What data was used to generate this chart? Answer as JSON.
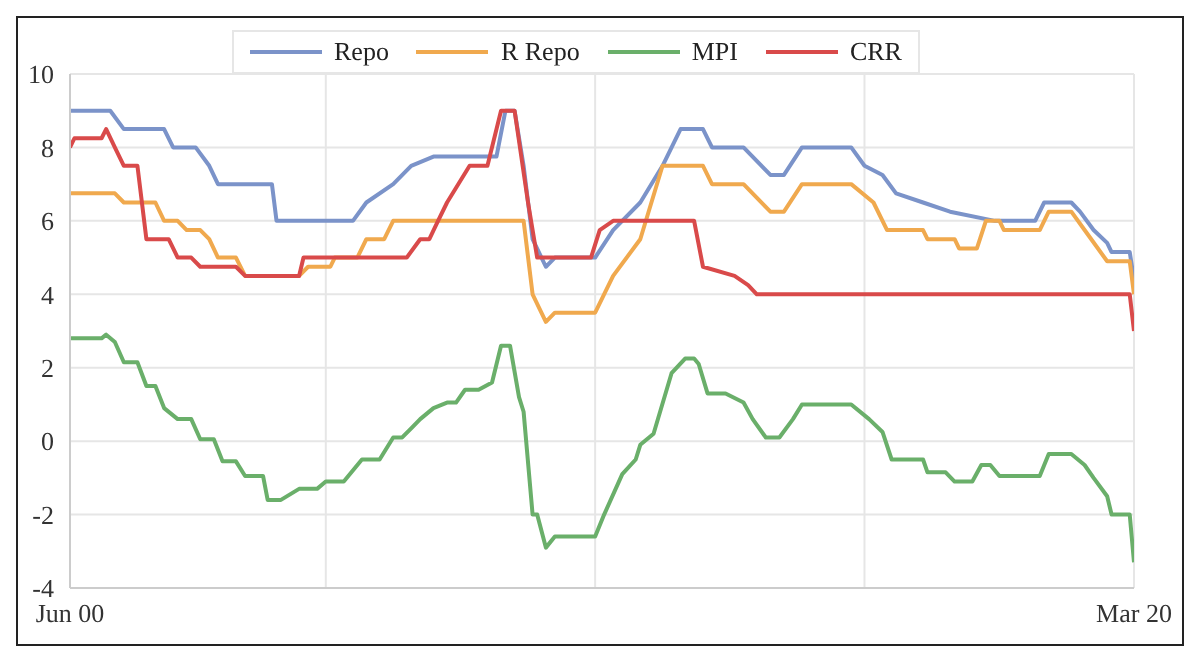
{
  "chart_data": {
    "type": "line",
    "legend": "top",
    "grid": true,
    "marker": "none",
    "line_style": "solid",
    "xlim": [
      "2000-06",
      "2020-03"
    ],
    "xticks": [
      {
        "value": "2000-06",
        "label": "Jun 00"
      },
      {
        "value": "2005-03",
        "label": null
      },
      {
        "value": "2010-03",
        "label": null
      },
      {
        "value": "2015-03",
        "label": null
      },
      {
        "value": "2020-03",
        "label": "Mar 20"
      }
    ],
    "ylim": [
      -4,
      10
    ],
    "yticks": [
      -4,
      -2,
      0,
      2,
      4,
      6,
      8,
      10
    ],
    "series": [
      {
        "name": "Repo",
        "color": "#7b93c9",
        "x": [
          "2000-06",
          "2001-03",
          "2001-06",
          "2002-03",
          "2002-05",
          "2002-10",
          "2003-01",
          "2003-03",
          "2004-03",
          "2004-04",
          "2005-09",
          "2005-12",
          "2006-06",
          "2006-10",
          "2007-03",
          "2008-05",
          "2008-07",
          "2008-09",
          "2008-11",
          "2009-01",
          "2009-04",
          "2009-06",
          "2010-03",
          "2010-07",
          "2011-01",
          "2011-06",
          "2011-10",
          "2012-03",
          "2012-05",
          "2012-12",
          "2013-06",
          "2013-09",
          "2014-01",
          "2014-12",
          "2015-03",
          "2015-07",
          "2015-10",
          "2016-04",
          "2016-10",
          "2017-08",
          "2018-05",
          "2018-07",
          "2019-01",
          "2019-03",
          "2019-06",
          "2019-09",
          "2019-10",
          "2020-02",
          "2020-03"
        ],
        "values": [
          9,
          9,
          8.5,
          8.5,
          8,
          8,
          7.5,
          7,
          7,
          6,
          6,
          6.5,
          7,
          7.5,
          7.75,
          7.75,
          9,
          9,
          7.5,
          5.5,
          4.75,
          5,
          5,
          5.75,
          6.5,
          7.5,
          8.5,
          8.5,
          8,
          8,
          7.25,
          7.25,
          8,
          8,
          7.5,
          7.25,
          6.75,
          6.5,
          6.25,
          6,
          6,
          6.5,
          6.5,
          6.25,
          5.75,
          5.4,
          5.15,
          5.15,
          4.4
        ]
      },
      {
        "name": "R Repo",
        "color": "#f0a94e",
        "x": [
          "2000-06",
          "2001-04",
          "2001-06",
          "2002-01",
          "2002-03",
          "2002-06",
          "2002-08",
          "2002-11",
          "2003-01",
          "2003-03",
          "2003-07",
          "2003-09",
          "2004-09",
          "2004-11",
          "2005-04",
          "2005-05",
          "2005-10",
          "2005-12",
          "2006-04",
          "2006-06",
          "2008-11",
          "2009-01",
          "2009-04",
          "2009-06",
          "2010-03",
          "2010-07",
          "2011-01",
          "2011-06",
          "2012-03",
          "2012-05",
          "2012-12",
          "2013-06",
          "2013-09",
          "2014-01",
          "2014-12",
          "2015-05",
          "2015-08",
          "2016-04",
          "2016-05",
          "2016-11",
          "2016-12",
          "2017-04",
          "2017-06",
          "2017-09",
          "2017-10",
          "2018-06",
          "2018-08",
          "2019-01",
          "2019-04",
          "2019-09",
          "2020-02",
          "2020-03"
        ],
        "values": [
          6.75,
          6.75,
          6.5,
          6.5,
          6,
          6,
          5.75,
          5.75,
          5.5,
          5,
          5,
          4.5,
          4.5,
          4.75,
          4.75,
          5,
          5,
          5.5,
          5.5,
          6,
          6,
          4,
          3.25,
          3.5,
          3.5,
          4.5,
          5.5,
          7.5,
          7.5,
          7,
          7,
          6.25,
          6.25,
          7,
          7,
          6.5,
          5.75,
          5.75,
          5.5,
          5.5,
          5.25,
          5.25,
          6,
          6,
          5.75,
          5.75,
          6.25,
          6.25,
          5.75,
          4.9,
          4.9,
          4
        ]
      },
      {
        "name": "MPI",
        "color": "#6aaf6a",
        "x": [
          "2000-06",
          "2001-01",
          "2001-02",
          "2001-04",
          "2001-06",
          "2001-09",
          "2001-11",
          "2002-01",
          "2002-03",
          "2002-06",
          "2002-09",
          "2002-11",
          "2003-02",
          "2003-04",
          "2003-07",
          "2003-09",
          "2004-01",
          "2004-02",
          "2004-05",
          "2004-09",
          "2005-01",
          "2005-03",
          "2005-07",
          "2005-11",
          "2006-03",
          "2006-06",
          "2006-08",
          "2006-10",
          "2006-12",
          "2007-03",
          "2007-06",
          "2007-08",
          "2007-10",
          "2008-01",
          "2008-04",
          "2008-06",
          "2008-08",
          "2008-10",
          "2008-11",
          "2009-01",
          "2009-02",
          "2009-04",
          "2009-06",
          "2010-03",
          "2010-05",
          "2010-09",
          "2010-12",
          "2011-01",
          "2011-04",
          "2011-08",
          "2011-11",
          "2012-01",
          "2012-02",
          "2012-04",
          "2012-08",
          "2012-12",
          "2013-02",
          "2013-05",
          "2013-08",
          "2013-11",
          "2014-01",
          "2014-12",
          "2015-04",
          "2015-07",
          "2015-09",
          "2016-04",
          "2016-05",
          "2016-09",
          "2016-11",
          "2017-03",
          "2017-05",
          "2017-07",
          "2017-09",
          "2018-06",
          "2018-08",
          "2019-01",
          "2019-04",
          "2019-06",
          "2019-09",
          "2019-10",
          "2020-02",
          "2020-03"
        ],
        "values": [
          2.8,
          2.8,
          2.9,
          2.7,
          2.15,
          2.15,
          1.5,
          1.5,
          0.9,
          0.6,
          0.6,
          0.05,
          0.05,
          -0.55,
          -0.55,
          -0.95,
          -0.95,
          -1.6,
          -1.6,
          -1.3,
          -1.3,
          -1.1,
          -1.1,
          -0.5,
          -0.5,
          0.1,
          0.1,
          0.35,
          0.6,
          0.9,
          1.05,
          1.05,
          1.4,
          1.4,
          1.6,
          2.6,
          2.6,
          1.2,
          0.8,
          -2,
          -2,
          -2.9,
          -2.6,
          -2.6,
          -2,
          -0.9,
          -0.5,
          -0.1,
          0.2,
          1.85,
          2.25,
          2.25,
          2.1,
          1.3,
          1.3,
          1.05,
          0.6,
          0.1,
          0.1,
          0.6,
          1,
          1,
          0.6,
          0.25,
          -0.5,
          -0.5,
          -0.85,
          -0.85,
          -1.1,
          -1.1,
          -0.65,
          -0.65,
          -0.95,
          -0.95,
          -0.35,
          -0.35,
          -0.65,
          -1,
          -1.5,
          -2,
          -2,
          -3.3
        ]
      },
      {
        "name": "CRR",
        "color": "#d94a4a",
        "x": [
          "2000-06",
          "2000-07",
          "2001-01",
          "2001-02",
          "2001-04",
          "2001-06",
          "2001-09",
          "2001-11",
          "2002-04",
          "2002-06",
          "2002-09",
          "2002-11",
          "2003-07",
          "2003-09",
          "2004-09",
          "2004-10",
          "2006-09",
          "2006-12",
          "2007-02",
          "2007-04",
          "2007-06",
          "2007-11",
          "2008-03",
          "2008-06",
          "2008-09",
          "2008-12",
          "2009-02",
          "2010-02",
          "2010-04",
          "2010-07",
          "2012-01",
          "2012-03",
          "2012-10",
          "2013-01",
          "2013-03",
          "2020-02",
          "2020-03"
        ],
        "values": [
          8,
          8.25,
          8.25,
          8.5,
          8,
          7.5,
          7.5,
          5.5,
          5.5,
          5,
          5,
          4.75,
          4.75,
          4.5,
          4.5,
          5,
          5,
          5.5,
          5.5,
          6,
          6.5,
          7.5,
          7.5,
          9,
          9,
          6.5,
          5,
          5,
          5.75,
          6,
          6,
          4.75,
          4.5,
          4.25,
          4,
          4,
          3
        ]
      }
    ]
  }
}
